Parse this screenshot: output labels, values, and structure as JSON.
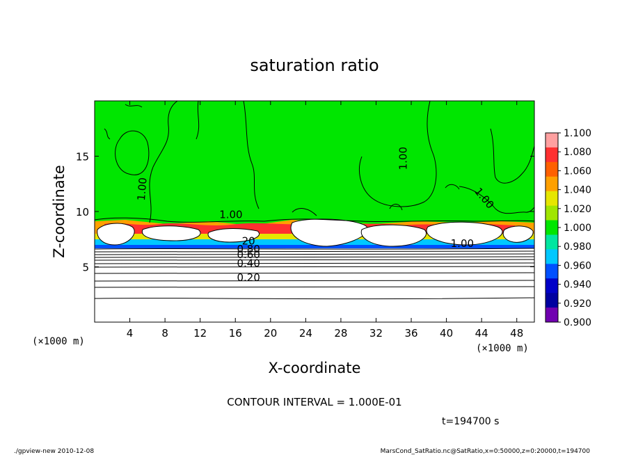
{
  "chart_data": {
    "type": "heatmap",
    "title": "saturation ratio",
    "xlabel": "X-coordinate",
    "ylabel": "Z-coordinate",
    "x_unit": "(×1000 m)",
    "y_unit": "(×1000 m)",
    "xlim": [
      0,
      50
    ],
    "ylim": [
      0,
      20
    ],
    "x_ticks": [
      4,
      8,
      12,
      16,
      20,
      24,
      28,
      32,
      36,
      40,
      44,
      48
    ],
    "y_ticks": [
      5,
      10,
      15
    ],
    "colorbar": {
      "levels": [
        "1.100",
        "1.080",
        "1.060",
        "1.040",
        "1.020",
        "1.000",
        "0.980",
        "0.960",
        "0.940",
        "0.920",
        "0.900"
      ],
      "colors": [
        "#ffa0a0",
        "#ff3030",
        "#ff6000",
        "#ffa000",
        "#e6e600",
        "#a0e600",
        "#00e600",
        "#00e6a0",
        "#00c8ff",
        "#0050ff",
        "#0000c8",
        "#0000a0",
        "#7000b0"
      ]
    },
    "contour_labels": [
      {
        "text": "1.00",
        "x": 15.5,
        "z": 9.4
      },
      {
        "text": "1.00",
        "x": 35.5,
        "z": 14.8,
        "rotate": -90
      },
      {
        "text": "1.00",
        "x": 5.8,
        "z": 12.0,
        "rotate": -85
      },
      {
        "text": "1.00",
        "x": 44.0,
        "z": 11.0,
        "rotate": 50
      },
      {
        "text": "1.00",
        "x": 41.8,
        "z": 6.8
      },
      {
        "text": "20",
        "x": 17.5,
        "z": 7.0
      },
      {
        "text": "0.80",
        "x": 17.5,
        "z": 6.3
      },
      {
        "text": "0.60",
        "x": 17.5,
        "z": 5.8
      },
      {
        "text": "0.40",
        "x": 17.5,
        "z": 5.0
      },
      {
        "text": "0.20",
        "x": 17.5,
        "z": 3.7
      }
    ],
    "contour_interval_text": "CONTOUR INTERVAL = 1.000E-01",
    "time_text": "t=194700 s"
  },
  "footer": {
    "left": "./gpview-new   2010-12-08",
    "right": "MarsCond_SatRatio.nc@SatRatio,x=0:50000,z=0:20000,t=194700"
  }
}
